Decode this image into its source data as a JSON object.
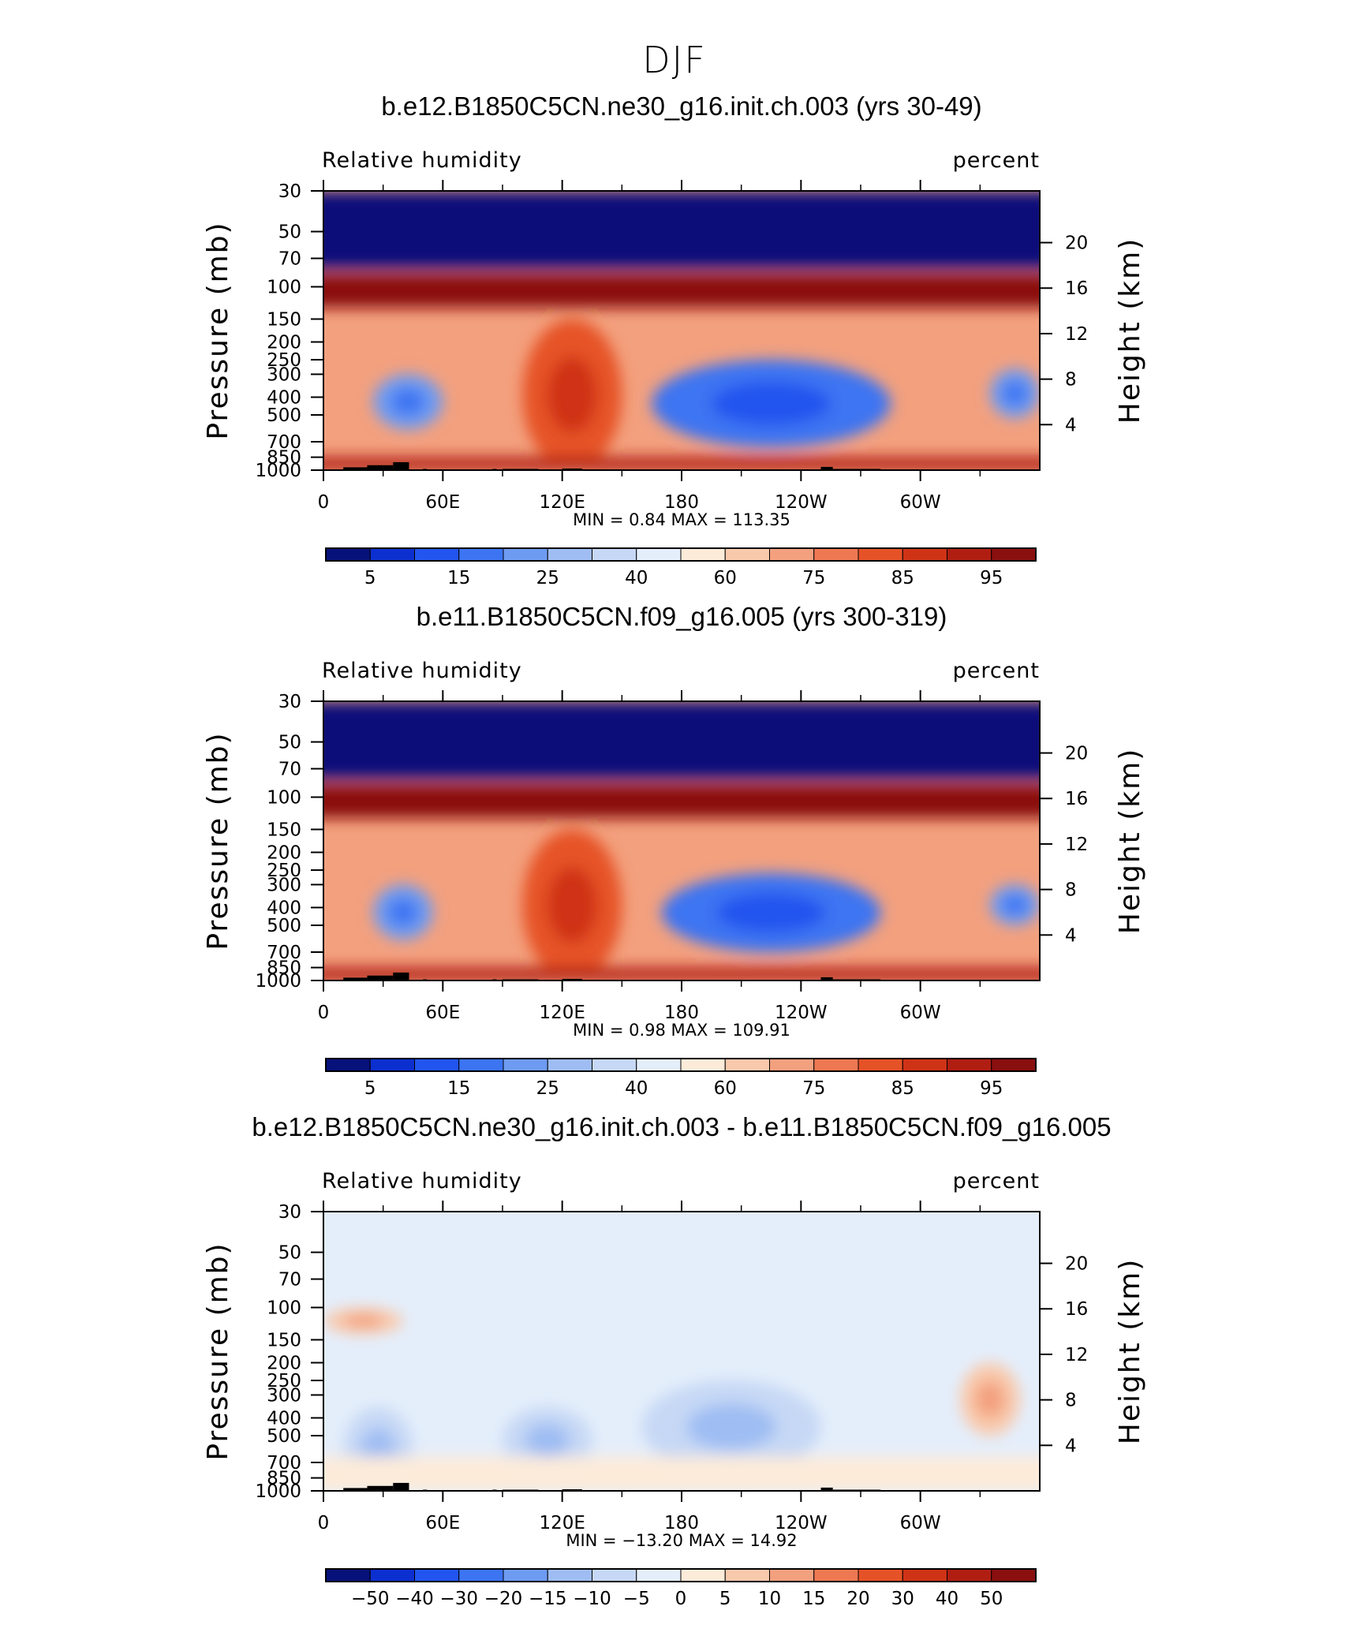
{
  "figure": {
    "title": "DJF"
  },
  "chart_data": [
    {
      "type": "heatmap",
      "title": "b.e12.B1850C5CN.ne30_g16.init.ch.003 (yrs 30-49)",
      "left_label": "Relative humidity",
      "right_label": "percent",
      "xlabel": "",
      "ylabel": "Pressure (mb)",
      "ylabel_right": "Height (km)",
      "x_ticks": [
        "0",
        "60E",
        "120E",
        "180",
        "120W",
        "60W"
      ],
      "x_tick_values": [
        0,
        60,
        120,
        180,
        240,
        300
      ],
      "xlim": [
        0,
        360
      ],
      "y_ticks": [
        "30",
        "50",
        "70",
        "100",
        "150",
        "200",
        "250",
        "300",
        "400",
        "500",
        "700",
        "850",
        "1000"
      ],
      "y_tick_values": [
        30,
        50,
        70,
        100,
        150,
        200,
        250,
        300,
        400,
        500,
        700,
        850,
        1000
      ],
      "right_ticks": [
        "20",
        "16",
        "12",
        "8",
        "4"
      ],
      "right_tick_values": [
        20,
        16,
        12,
        8,
        4
      ],
      "ylim": [
        1000,
        30
      ],
      "yscale": "log",
      "stats_text": "MIN =    0.84   MAX =  113.35",
      "min": 0.84,
      "max": 113.35,
      "colorbar_labels": [
        "5",
        "15",
        "25",
        "40",
        "60",
        "75",
        "85",
        "95"
      ],
      "colorbar_colors": [
        "#07117a",
        "#0c2fd0",
        "#2255ef",
        "#3c74f2",
        "#6e9bf2",
        "#9fbdf3",
        "#c6d8f5",
        "#e4eefb",
        "#fdebd9",
        "#f9c9ac",
        "#f3a07e",
        "#ee7852",
        "#e65227",
        "#cf3316",
        "#b01e12",
        "#8a0f0f"
      ],
      "features": [
        {
          "name": "dry tropopause cap",
          "x": [
            0,
            360
          ],
          "p": [
            30,
            80
          ],
          "level": 0
        },
        {
          "name": "moist tropopause band",
          "x": [
            0,
            360
          ],
          "p": [
            85,
            130
          ],
          "level": 15
        },
        {
          "name": "dry central pacific",
          "x": [
            165,
            285
          ],
          "p": [
            250,
            750
          ],
          "level": 3
        },
        {
          "name": "dry atlantic sector",
          "x": [
            335,
            360
          ],
          "p": [
            280,
            520
          ],
          "level": 4
        },
        {
          "name": "dry african sector",
          "x": [
            25,
            60
          ],
          "p": [
            300,
            600
          ],
          "level": 4
        },
        {
          "name": "moist maritime continent",
          "x": [
            100,
            150
          ],
          "p": [
            150,
            1000
          ],
          "level": 12
        },
        {
          "name": "moist boundary layer",
          "x": [
            0,
            360
          ],
          "p": [
            850,
            1000
          ],
          "level": 14
        }
      ]
    },
    {
      "type": "heatmap",
      "title": "b.e11.B1850C5CN.f09_g16.005 (yrs 300-319)",
      "left_label": "Relative humidity",
      "right_label": "percent",
      "xlabel": "",
      "ylabel": "Pressure (mb)",
      "ylabel_right": "Height (km)",
      "x_ticks": [
        "0",
        "60E",
        "120E",
        "180",
        "120W",
        "60W"
      ],
      "x_tick_values": [
        0,
        60,
        120,
        180,
        240,
        300
      ],
      "xlim": [
        0,
        360
      ],
      "y_ticks": [
        "30",
        "50",
        "70",
        "100",
        "150",
        "200",
        "250",
        "300",
        "400",
        "500",
        "700",
        "850",
        "1000"
      ],
      "y_tick_values": [
        30,
        50,
        70,
        100,
        150,
        200,
        250,
        300,
        400,
        500,
        700,
        850,
        1000
      ],
      "right_ticks": [
        "20",
        "16",
        "12",
        "8",
        "4"
      ],
      "right_tick_values": [
        20,
        16,
        12,
        8,
        4
      ],
      "ylim": [
        1000,
        30
      ],
      "yscale": "log",
      "stats_text": "MIN =    0.98   MAX =  109.91",
      "min": 0.98,
      "max": 109.91,
      "colorbar_labels": [
        "5",
        "15",
        "25",
        "40",
        "60",
        "75",
        "85",
        "95"
      ],
      "colorbar_colors": [
        "#07117a",
        "#0c2fd0",
        "#2255ef",
        "#3c74f2",
        "#6e9bf2",
        "#9fbdf3",
        "#c6d8f5",
        "#e4eefb",
        "#fdebd9",
        "#f9c9ac",
        "#f3a07e",
        "#ee7852",
        "#e65227",
        "#cf3316",
        "#b01e12",
        "#8a0f0f"
      ],
      "features": [
        {
          "name": "dry tropopause cap",
          "x": [
            0,
            360
          ],
          "p": [
            30,
            80
          ],
          "level": 0
        },
        {
          "name": "moist tropopause band",
          "x": [
            0,
            360
          ],
          "p": [
            85,
            130
          ],
          "level": 15
        },
        {
          "name": "dry central pacific",
          "x": [
            170,
            280
          ],
          "p": [
            260,
            700
          ],
          "level": 3
        },
        {
          "name": "dry atlantic sector",
          "x": [
            335,
            360
          ],
          "p": [
            300,
            500
          ],
          "level": 4
        },
        {
          "name": "dry african sector",
          "x": [
            25,
            55
          ],
          "p": [
            300,
            600
          ],
          "level": 4
        },
        {
          "name": "moist maritime continent",
          "x": [
            100,
            150
          ],
          "p": [
            150,
            1000
          ],
          "level": 12
        },
        {
          "name": "moist boundary layer",
          "x": [
            0,
            360
          ],
          "p": [
            850,
            1000
          ],
          "level": 14
        }
      ]
    },
    {
      "type": "heatmap",
      "title": "b.e12.B1850C5CN.ne30_g16.init.ch.003 - b.e11.B1850C5CN.f09_g16.005",
      "left_label": "Relative humidity",
      "right_label": "percent",
      "xlabel": "",
      "ylabel": "Pressure (mb)",
      "ylabel_right": "Height (km)",
      "x_ticks": [
        "0",
        "60E",
        "120E",
        "180",
        "120W",
        "60W"
      ],
      "x_tick_values": [
        0,
        60,
        120,
        180,
        240,
        300
      ],
      "xlim": [
        0,
        360
      ],
      "y_ticks": [
        "30",
        "50",
        "70",
        "100",
        "150",
        "200",
        "250",
        "300",
        "400",
        "500",
        "700",
        "850",
        "1000"
      ],
      "y_tick_values": [
        30,
        50,
        70,
        100,
        150,
        200,
        250,
        300,
        400,
        500,
        700,
        850,
        1000
      ],
      "right_ticks": [
        "20",
        "16",
        "12",
        "8",
        "4"
      ],
      "right_tick_values": [
        20,
        16,
        12,
        8,
        4
      ],
      "ylim": [
        1000,
        30
      ],
      "yscale": "log",
      "stats_text": "MIN = −13.20   MAX =    14.92",
      "min": -13.2,
      "max": 14.92,
      "colorbar_labels": [
        "−50",
        "−40",
        "−30",
        "−20",
        "−15",
        "−10",
        "−5",
        "0",
        "5",
        "10",
        "15",
        "20",
        "30",
        "40",
        "50"
      ],
      "colorbar_colors": [
        "#07117a",
        "#0c2fd0",
        "#2255ef",
        "#3c74f2",
        "#6e9bf2",
        "#9fbdf3",
        "#c6d8f5",
        "#e4eefb",
        "#fdebd9",
        "#f9c9ac",
        "#f3a07e",
        "#ee7852",
        "#e65227",
        "#cf3316",
        "#b01e12",
        "#8a0f0f"
      ],
      "features": [
        {
          "name": "positive band near tropopause",
          "x": [
            0,
            40
          ],
          "p": [
            100,
            140
          ],
          "level": 9
        },
        {
          "name": "negative west pacific",
          "x": [
            90,
            135
          ],
          "p": [
            350,
            800
          ],
          "level": 6
        },
        {
          "name": "negative central pacific",
          "x": [
            160,
            250
          ],
          "p": [
            250,
            800
          ],
          "level": 6
        },
        {
          "name": "positive atlantic sector",
          "x": [
            320,
            350
          ],
          "p": [
            200,
            500
          ],
          "level": 9
        },
        {
          "name": "negative african sector",
          "x": [
            10,
            45
          ],
          "p": [
            350,
            1000
          ],
          "level": 6
        },
        {
          "name": "positive lower troposphere",
          "x": [
            0,
            360
          ],
          "p": [
            650,
            1000
          ],
          "level": 8
        }
      ]
    }
  ]
}
